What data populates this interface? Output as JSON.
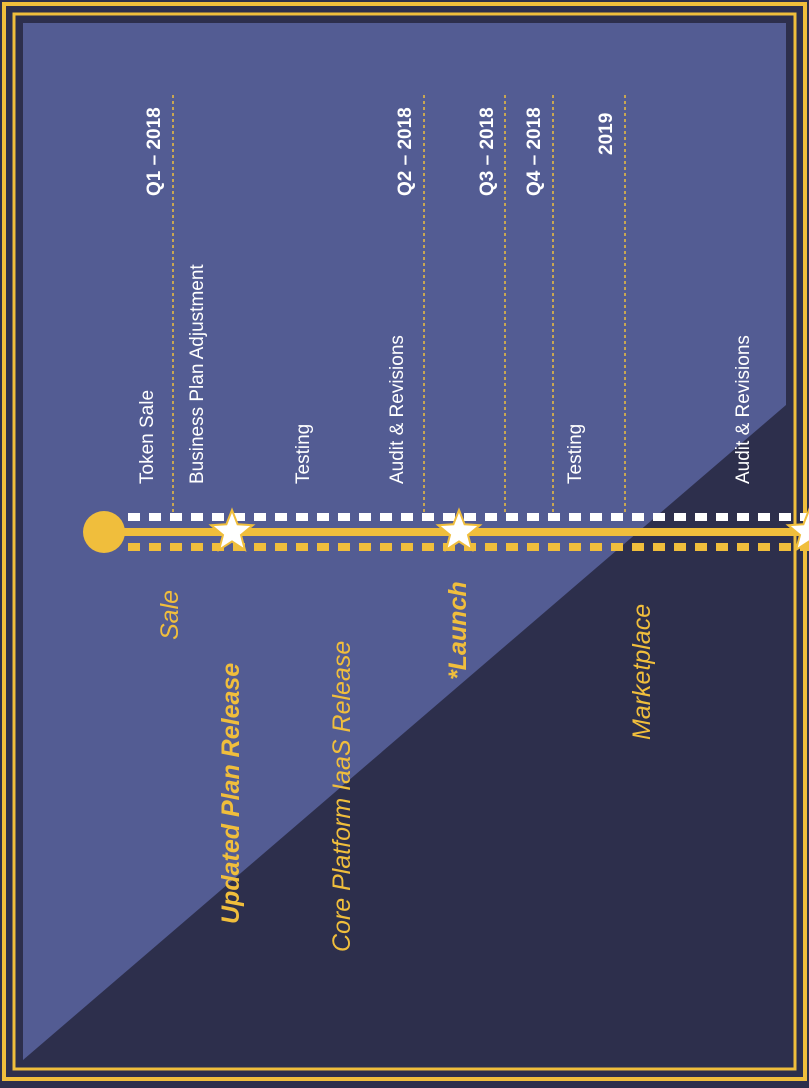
{
  "colors": {
    "frame": "#f0be3c",
    "background_light": "#535c93",
    "background_dark": "#2d2f4c",
    "text": "#ffffff",
    "accent": "#f0be3c"
  },
  "timeline": {
    "dates": [
      "Q1 – 2018",
      "Q2 – 2018",
      "Q3 – 2018",
      "Q4 – 2018",
      "2019"
    ],
    "tasks": [
      "Token Sale",
      "Business Plan Adjustment",
      "Testing",
      "Audit & Revisions",
      "Testing",
      "Audit & Revisions"
    ],
    "milestones": [
      "Sale",
      "Updated Plan Release",
      "Core Platform IaaS Release",
      "*Launch",
      "Marketplace"
    ],
    "icons": [
      "start-circle-icon",
      "star-icon",
      "star-icon"
    ]
  }
}
